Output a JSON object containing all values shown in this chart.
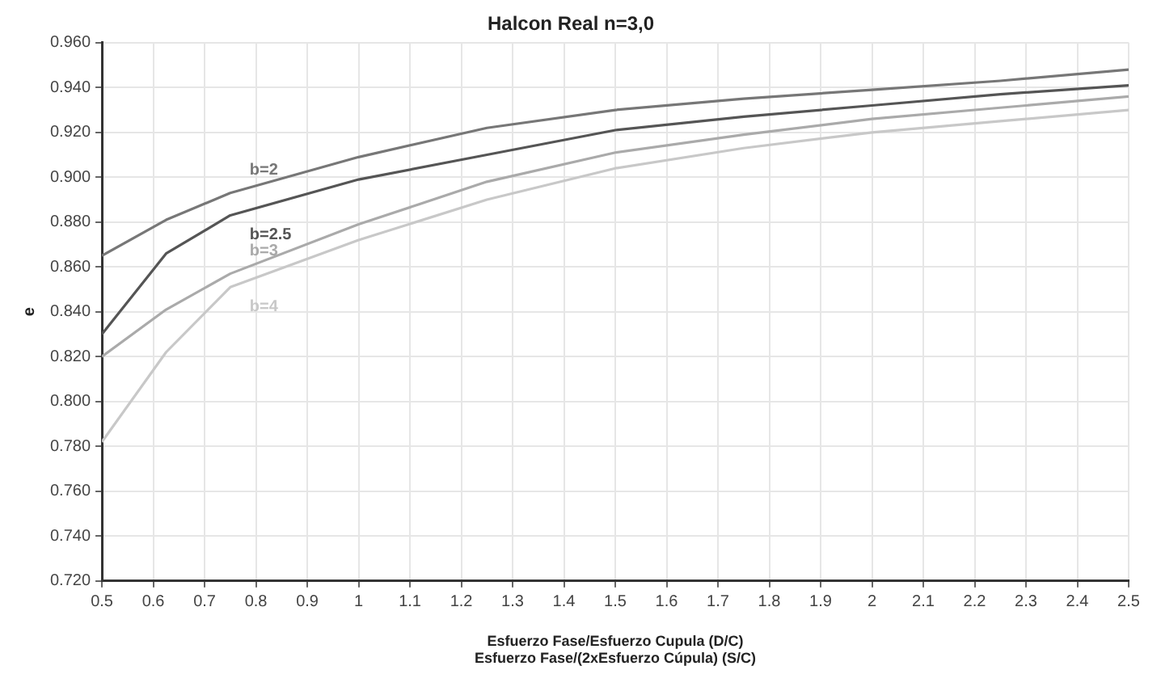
{
  "chart_data": {
    "type": "line",
    "title": "Halcon Real n=3,0",
    "xlabel": "Esfuerzo Fase/Esfuerzo Cupula (D/C)\nEsfuerzo Fase/(2xEsfuerzo Cúpula) (S/C)",
    "ylabel": "e",
    "x": [
      0.5,
      0.625,
      0.75,
      1.0,
      1.25,
      1.5,
      1.75,
      2.0,
      2.25,
      2.5
    ],
    "series": [
      {
        "name": "b=2",
        "color": "#777777",
        "values": [
          0.865,
          0.881,
          0.893,
          0.909,
          0.922,
          0.93,
          0.935,
          0.939,
          0.943,
          0.948
        ]
      },
      {
        "name": "b=2.5",
        "color": "#555555",
        "values": [
          0.83,
          0.866,
          0.883,
          0.899,
          0.91,
          0.921,
          0.927,
          0.932,
          0.937,
          0.941
        ]
      },
      {
        "name": "b=3",
        "color": "#aaaaaa",
        "values": [
          0.82,
          0.841,
          0.857,
          0.879,
          0.898,
          0.911,
          0.919,
          0.926,
          0.931,
          0.936
        ]
      },
      {
        "name": "b=4",
        "color": "#c8c8c8",
        "values": [
          0.782,
          0.822,
          0.851,
          0.872,
          0.89,
          0.904,
          0.913,
          0.92,
          0.925,
          0.93
        ]
      }
    ],
    "xlim": [
      0.5,
      2.5
    ],
    "xticks": [
      0.5,
      0.6,
      0.7,
      0.8,
      0.9,
      1,
      1.1,
      1.2,
      1.3,
      1.4,
      1.5,
      1.6,
      1.7,
      1.8,
      1.9,
      2,
      2.1,
      2.2,
      2.3,
      2.4,
      2.5
    ],
    "ylim": [
      0.72,
      0.96
    ],
    "yticks": [
      {
        "value": 0.72,
        "label": "0.720"
      },
      {
        "value": 0.74,
        "label": "0.740"
      },
      {
        "value": 0.76,
        "label": "0.760"
      },
      {
        "value": 0.78,
        "label": "0.780"
      },
      {
        "value": 0.8,
        "label": "0.800"
      },
      {
        "value": 0.82,
        "label": "0.820"
      },
      {
        "value": 0.84,
        "label": "0.840"
      },
      {
        "value": 0.86,
        "label": "0.860"
      },
      {
        "value": 0.88,
        "label": "0.880"
      },
      {
        "value": 0.9,
        "label": "0.900"
      },
      {
        "value": 0.92,
        "label": "0.920"
      },
      {
        "value": 0.94,
        "label": "0.940"
      },
      {
        "value": 0.96,
        "label": "0.960"
      }
    ],
    "grid": true,
    "legend": false,
    "marker": "none",
    "line_style": "solid"
  }
}
